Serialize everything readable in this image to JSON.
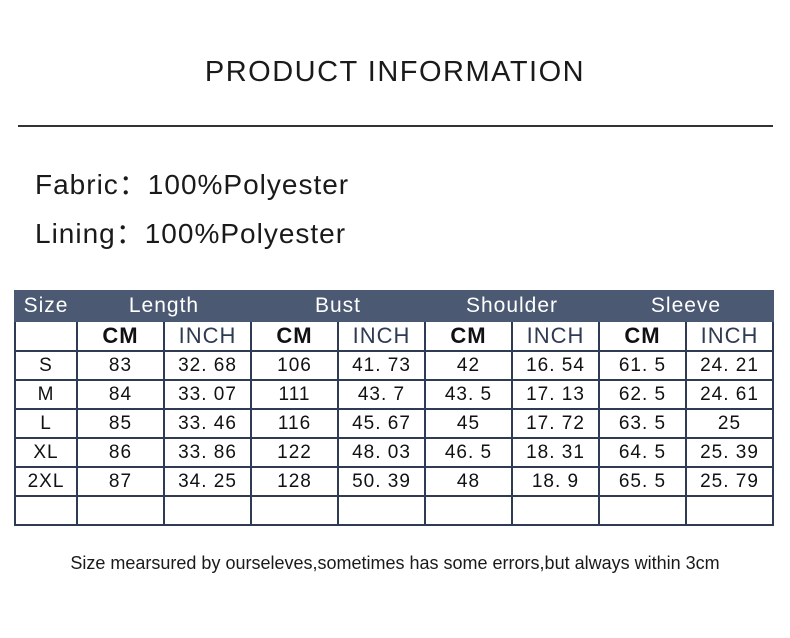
{
  "title": "PRODUCT INFORMATION",
  "fabric": {
    "label": "Fabric：",
    "value": "100%Polyester"
  },
  "lining": {
    "label": "Lining：",
    "value": "100%Polyester"
  },
  "table": {
    "header": [
      "Size",
      "Length",
      "Bust",
      "Shoulder",
      "Sleeve"
    ],
    "units": [
      "CM",
      "INCH",
      "CM",
      "INCH",
      "CM",
      "INCH",
      "CM",
      "INCH"
    ],
    "rows": [
      [
        "S",
        "83",
        "32. 68",
        "106",
        "41. 73",
        "42",
        "16. 54",
        "61. 5",
        "24. 21"
      ],
      [
        "M",
        "84",
        "33. 07",
        "111",
        "43. 7",
        "43. 5",
        "17. 13",
        "62. 5",
        "24. 61"
      ],
      [
        "L",
        "85",
        "33. 46",
        "116",
        "45. 67",
        "45",
        "17. 72",
        "63. 5",
        "25"
      ],
      [
        "XL",
        "86",
        "33. 86",
        "122",
        "48. 03",
        "46. 5",
        "18. 31",
        "64. 5",
        "25. 39"
      ],
      [
        "2XL",
        "87",
        "34. 25",
        "128",
        "50. 39",
        "48",
        "18. 9",
        "65. 5",
        "25. 79"
      ]
    ]
  },
  "note": "Size mearsured by ourseleves,sometimes has some errors,but always within 3cm",
  "colors": {
    "header_bg": "#4b5a72",
    "grid": "#2e3b52"
  }
}
